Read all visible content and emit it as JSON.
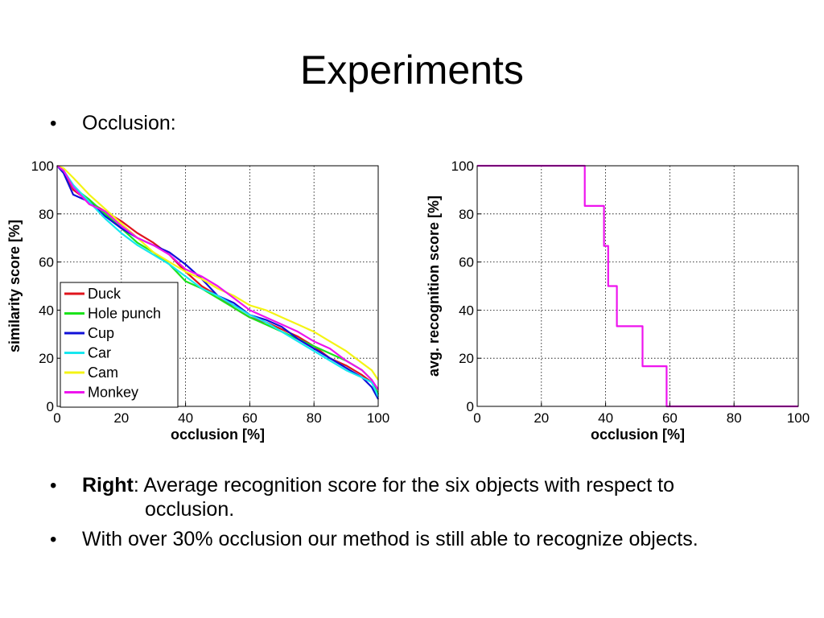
{
  "slide": {
    "title": "Experiments",
    "bullet_symbol": "•",
    "bullets": {
      "occlusion": "Occlusion:",
      "right_bold": "Right",
      "right_text": ": Average recognition score for the six objects with respect to",
      "right_text_cont": "occlusion.",
      "summary": "With over 30% occlusion our method is still able to recognize objects."
    }
  },
  "chart_data": [
    {
      "type": "line",
      "xlabel": "occlusion [%]",
      "ylabel": "similarity score [%]",
      "xlim": [
        0,
        100
      ],
      "ylim": [
        0,
        100
      ],
      "xticks": [
        0,
        20,
        40,
        60,
        80,
        100
      ],
      "yticks": [
        0,
        20,
        40,
        60,
        80,
        100
      ],
      "grid": true,
      "legend": "lower-left",
      "x": [
        0,
        2,
        5,
        10,
        15,
        20,
        25,
        30,
        35,
        40,
        45,
        50,
        55,
        60,
        65,
        70,
        75,
        80,
        85,
        90,
        95,
        98,
        100
      ],
      "series": [
        {
          "name": "Duck",
          "color": "#e0141c",
          "values": [
            100,
            98,
            90,
            85,
            81,
            77,
            72,
            68,
            63,
            56,
            50,
            46,
            41,
            37,
            35,
            32,
            29,
            25,
            20,
            17,
            13,
            10,
            5
          ]
        },
        {
          "name": "Hole punch",
          "color": "#1be31b",
          "values": [
            100,
            98,
            91,
            86,
            80,
            74,
            68,
            64,
            59,
            52,
            49,
            45,
            41,
            37,
            34,
            31,
            28,
            25,
            22,
            19,
            15,
            11,
            5
          ]
        },
        {
          "name": "Cup",
          "color": "#1010d8",
          "values": [
            100,
            97,
            88,
            85,
            79,
            74,
            70,
            67,
            64,
            59,
            53,
            46,
            43,
            38,
            36,
            33,
            28,
            24,
            20,
            16,
            12,
            8,
            3
          ]
        },
        {
          "name": "Car",
          "color": "#17e7ef",
          "values": [
            100,
            98,
            92,
            85,
            78,
            72,
            67,
            63,
            59,
            54,
            49,
            46,
            42,
            38,
            35,
            31,
            27,
            23,
            19,
            15,
            12,
            10,
            4
          ]
        },
        {
          "name": "Cam",
          "color": "#f4f414",
          "values": [
            100,
            99,
            95,
            88,
            82,
            76,
            70,
            64,
            60,
            56,
            53,
            49,
            46,
            42,
            40,
            37,
            34,
            31,
            27,
            23,
            18,
            15,
            11
          ]
        },
        {
          "name": "Monkey",
          "color": "#ee14ee",
          "values": [
            100,
            98,
            91,
            84,
            81,
            75,
            70,
            67,
            63,
            57,
            54,
            50,
            45,
            40,
            37,
            34,
            31,
            27,
            24,
            19,
            15,
            11,
            7
          ]
        }
      ]
    },
    {
      "type": "line",
      "xlabel": "occlusion [%]",
      "ylabel": "avg. recognition score [%]",
      "xlim": [
        0,
        100
      ],
      "ylim": [
        0,
        100
      ],
      "xticks": [
        0,
        20,
        40,
        60,
        80,
        100
      ],
      "yticks": [
        0,
        20,
        40,
        60,
        80,
        100
      ],
      "grid": true,
      "step": true,
      "series": [
        {
          "color": "#ee14ee",
          "x": [
            0,
            33.5,
            33.5,
            39.5,
            39.5,
            40.8,
            40.8,
            42.5,
            42.5,
            43.5,
            43.5,
            51.5,
            51.5,
            59,
            59,
            100
          ],
          "values": [
            100,
            100,
            83.3,
            83.3,
            66.7,
            66.7,
            50,
            50,
            50,
            50,
            33.3,
            33.3,
            16.7,
            16.7,
            0,
            0
          ]
        }
      ]
    }
  ]
}
